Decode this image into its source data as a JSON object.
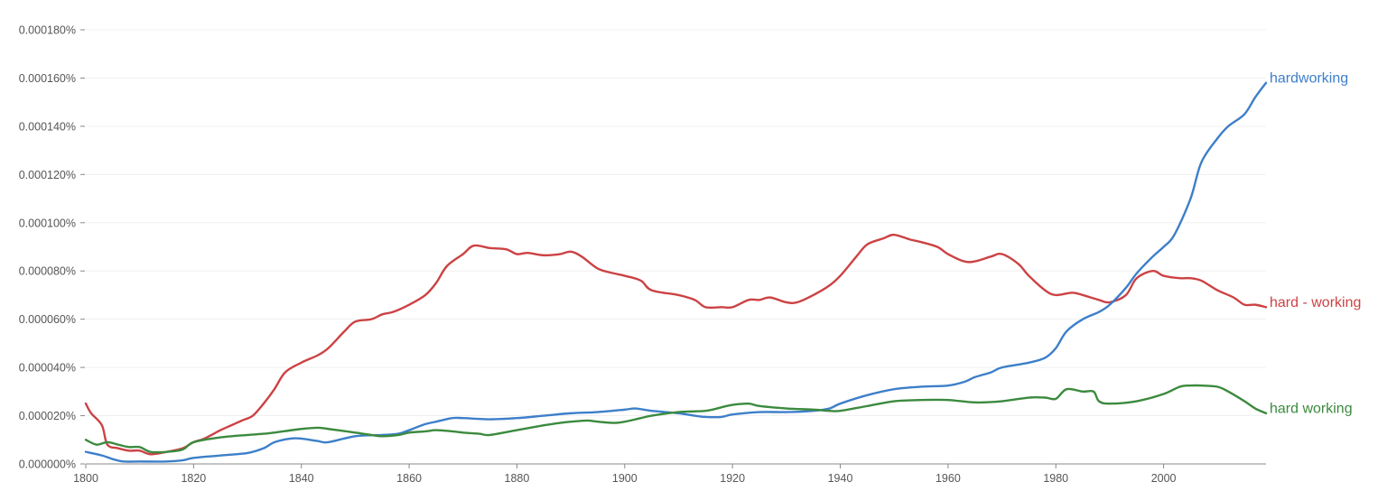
{
  "chart_data": {
    "type": "line",
    "title": "",
    "xlabel": "",
    "ylabel": "",
    "xlim": [
      1800,
      2019
    ],
    "ylim": [
      0,
      0.00018
    ],
    "grid": true,
    "y_ticks": [
      "0.000000%",
      "0.000020%",
      "0.000040%",
      "0.000060%",
      "0.000080%",
      "0.000100%",
      "0.000120%",
      "0.000140%",
      "0.000160%",
      "0.000180%"
    ],
    "y_tick_values": [
      0,
      2e-05,
      4e-05,
      6e-05,
      8e-05,
      0.0001,
      0.00012,
      0.00014,
      0.00016,
      0.00018
    ],
    "x_ticks": [
      "1800",
      "1820",
      "1840",
      "1860",
      "1880",
      "1900",
      "1920",
      "1940",
      "1960",
      "1980",
      "2000"
    ],
    "x_tick_values": [
      1800,
      1820,
      1840,
      1860,
      1880,
      1900,
      1920,
      1940,
      1960,
      1980,
      2000
    ],
    "series": [
      {
        "name": "hardworking",
        "color": "#3d7fc9",
        "x": [
          1800,
          1803,
          1805,
          1807,
          1810,
          1815,
          1818,
          1820,
          1825,
          1830,
          1833,
          1835,
          1838,
          1840,
          1843,
          1845,
          1850,
          1855,
          1858,
          1860,
          1863,
          1865,
          1868,
          1870,
          1875,
          1880,
          1885,
          1890,
          1895,
          1900,
          1902,
          1905,
          1910,
          1913,
          1915,
          1918,
          1920,
          1925,
          1930,
          1935,
          1938,
          1940,
          1945,
          1950,
          1955,
          1960,
          1963,
          1965,
          1968,
          1970,
          1975,
          1978,
          1980,
          1982,
          1985,
          1988,
          1990,
          1993,
          1995,
          1998,
          2000,
          2002,
          2005,
          2007,
          2010,
          2012,
          2015,
          2017,
          2019
        ],
        "y": [
          5e-06,
          3.5e-06,
          2e-06,
          1e-06,
          1e-06,
          1e-06,
          1.5e-06,
          2.5e-06,
          3.5e-06,
          4.5e-06,
          6.5e-06,
          9e-06,
          1.05e-05,
          1.05e-05,
          9.5e-06,
          9e-06,
          1.15e-05,
          1.2e-05,
          1.25e-05,
          1.4e-05,
          1.65e-05,
          1.75e-05,
          1.9e-05,
          1.9e-05,
          1.85e-05,
          1.9e-05,
          2e-05,
          2.1e-05,
          2.15e-05,
          2.25e-05,
          2.3e-05,
          2.2e-05,
          2.1e-05,
          2e-05,
          1.95e-05,
          1.95e-05,
          2.05e-05,
          2.15e-05,
          2.15e-05,
          2.2e-05,
          2.3e-05,
          2.5e-05,
          2.85e-05,
          3.1e-05,
          3.2e-05,
          3.25e-05,
          3.4e-05,
          3.6e-05,
          3.8e-05,
          4e-05,
          4.2e-05,
          4.4e-05,
          4.8e-05,
          5.5e-05,
          6e-05,
          6.3e-05,
          6.6e-05,
          7.3e-05,
          7.9e-05,
          8.6e-05,
          9e-05,
          9.5e-05,
          0.00011,
          0.000125,
          0.000135,
          0.00014,
          0.000145,
          0.000152,
          0.000158
        ]
      },
      {
        "name": "hard - working",
        "color": "#cc4244",
        "x": [
          1800,
          1801,
          1803,
          1804,
          1806,
          1808,
          1810,
          1812,
          1815,
          1818,
          1820,
          1822,
          1825,
          1827,
          1829,
          1831,
          1833,
          1835,
          1837,
          1840,
          1843,
          1845,
          1848,
          1850,
          1853,
          1855,
          1857,
          1860,
          1863,
          1865,
          1867,
          1870,
          1872,
          1875,
          1878,
          1880,
          1882,
          1885,
          1888,
          1890,
          1892,
          1895,
          1898,
          1900,
          1903,
          1905,
          1910,
          1913,
          1915,
          1918,
          1920,
          1923,
          1925,
          1927,
          1930,
          1932,
          1935,
          1938,
          1940,
          1943,
          1945,
          1948,
          1950,
          1953,
          1955,
          1958,
          1960,
          1963,
          1965,
          1968,
          1970,
          1973,
          1975,
          1978,
          1980,
          1983,
          1985,
          1988,
          1990,
          1993,
          1995,
          1998,
          2000,
          2003,
          2005,
          2007,
          2010,
          2013,
          2015,
          2017,
          2019
        ],
        "y": [
          2.5e-05,
          2.1e-05,
          1.6e-05,
          8e-06,
          6.5e-06,
          5.5e-06,
          5.5e-06,
          4e-06,
          5e-06,
          6.5e-06,
          9e-06,
          1.05e-05,
          1.4e-05,
          1.6e-05,
          1.8e-05,
          2e-05,
          2.5e-05,
          3.1e-05,
          3.8e-05,
          4.2e-05,
          4.5e-05,
          4.8e-05,
          5.5e-05,
          5.9e-05,
          6e-05,
          6.2e-05,
          6.3e-05,
          6.6e-05,
          7e-05,
          7.5e-05,
          8.2e-05,
          8.7e-05,
          9.05e-05,
          8.95e-05,
          8.9e-05,
          8.7e-05,
          8.75e-05,
          8.65e-05,
          8.7e-05,
          8.8e-05,
          8.6e-05,
          8.1e-05,
          7.9e-05,
          7.8e-05,
          7.6e-05,
          7.2e-05,
          7e-05,
          6.8e-05,
          6.5e-05,
          6.5e-05,
          6.5e-05,
          6.8e-05,
          6.8e-05,
          6.9e-05,
          6.7e-05,
          6.7e-05,
          7e-05,
          7.4e-05,
          7.8e-05,
          8.6e-05,
          9.1e-05,
          9.35e-05,
          9.5e-05,
          9.3e-05,
          9.2e-05,
          9e-05,
          8.7e-05,
          8.4e-05,
          8.4e-05,
          8.6e-05,
          8.7e-05,
          8.3e-05,
          7.8e-05,
          7.2e-05,
          7e-05,
          7.1e-05,
          7e-05,
          6.8e-05,
          6.7e-05,
          7e-05,
          7.7e-05,
          8e-05,
          7.8e-05,
          7.7e-05,
          7.7e-05,
          7.6e-05,
          7.2e-05,
          6.9e-05,
          6.6e-05,
          6.6e-05,
          6.5e-05
        ]
      },
      {
        "name": "hard working",
        "color": "#3b8a3e",
        "x": [
          1800,
          1802,
          1804,
          1806,
          1808,
          1810,
          1812,
          1815,
          1818,
          1820,
          1825,
          1830,
          1833,
          1835,
          1840,
          1843,
          1845,
          1850,
          1853,
          1855,
          1858,
          1860,
          1863,
          1865,
          1868,
          1870,
          1873,
          1875,
          1880,
          1885,
          1888,
          1890,
          1893,
          1895,
          1898,
          1900,
          1903,
          1905,
          1910,
          1915,
          1918,
          1920,
          1923,
          1925,
          1930,
          1935,
          1938,
          1940,
          1945,
          1950,
          1955,
          1960,
          1965,
          1970,
          1975,
          1978,
          1980,
          1982,
          1985,
          1987,
          1988,
          1990,
          1995,
          2000,
          2003,
          2005,
          2007,
          2010,
          2012,
          2015,
          2017,
          2019
        ],
        "y": [
          1e-05,
          8e-06,
          9e-06,
          8e-06,
          7e-06,
          7e-06,
          5e-06,
          5e-06,
          6e-06,
          9e-06,
          1.1e-05,
          1.2e-05,
          1.25e-05,
          1.3e-05,
          1.45e-05,
          1.5e-05,
          1.45e-05,
          1.3e-05,
          1.2e-05,
          1.15e-05,
          1.2e-05,
          1.3e-05,
          1.35e-05,
          1.4e-05,
          1.35e-05,
          1.3e-05,
          1.25e-05,
          1.2e-05,
          1.4e-05,
          1.6e-05,
          1.7e-05,
          1.75e-05,
          1.8e-05,
          1.75e-05,
          1.7e-05,
          1.75e-05,
          1.9e-05,
          2e-05,
          2.15e-05,
          2.2e-05,
          2.35e-05,
          2.45e-05,
          2.5e-05,
          2.4e-05,
          2.3e-05,
          2.25e-05,
          2.2e-05,
          2.2e-05,
          2.4e-05,
          2.6e-05,
          2.65e-05,
          2.65e-05,
          2.55e-05,
          2.6e-05,
          2.75e-05,
          2.75e-05,
          2.7e-05,
          3.1e-05,
          3e-05,
          3e-05,
          2.6e-05,
          2.5e-05,
          2.6e-05,
          2.9e-05,
          3.2e-05,
          3.25e-05,
          3.25e-05,
          3.2e-05,
          3e-05,
          2.6e-05,
          2.3e-05,
          2.1e-05
        ]
      }
    ]
  }
}
